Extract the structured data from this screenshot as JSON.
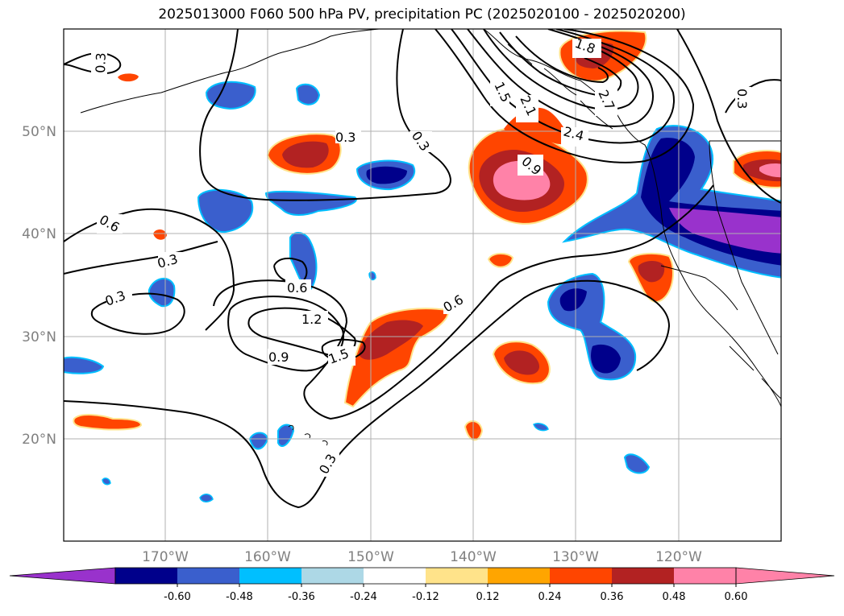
{
  "title": "2025013000 F060 500 hPa PV, precipitation PC (2025020100 - 2025020200)",
  "lat_labels": [
    "50°N",
    "40°N",
    "30°N",
    "20°N"
  ],
  "lon_labels": [
    "170°W",
    "160°W",
    "150°W",
    "140°W",
    "130°W",
    "120°W"
  ],
  "contour_labels": [
    "0.3",
    "0.3",
    "0.3",
    "0.3",
    "0.3",
    "0.3",
    "0.6",
    "0.6",
    "0.6",
    "0.9",
    "0.9",
    "1.2",
    "1.5",
    "1.5",
    "1.8",
    "2.1",
    "2.4",
    "2.7"
  ],
  "colorbar": {
    "labels": [
      "-0.60",
      "-0.48",
      "-0.36",
      "-0.24",
      "-0.12",
      "0.12",
      "0.24",
      "0.36",
      "0.48",
      "0.60"
    ],
    "colors": [
      "#9932cc",
      "#00008b",
      "#3a5fcd",
      "#00bfff",
      "#add8e6",
      "#ffffff",
      "#ffe38a",
      "#ffa500",
      "#ff4500",
      "#b22222",
      "#ff82a8",
      "#ff82a8"
    ]
  },
  "fill_colors": {
    "purple": "#9932cc",
    "navy": "#00008b",
    "royal": "#3a5fcd",
    "sky": "#00bfff",
    "pale": "#add8e6",
    "yellow": "#ffe38a",
    "orange": "#ffa500",
    "red": "#ff4500",
    "firebrick": "#b22222",
    "pink": "#ff82a8"
  }
}
